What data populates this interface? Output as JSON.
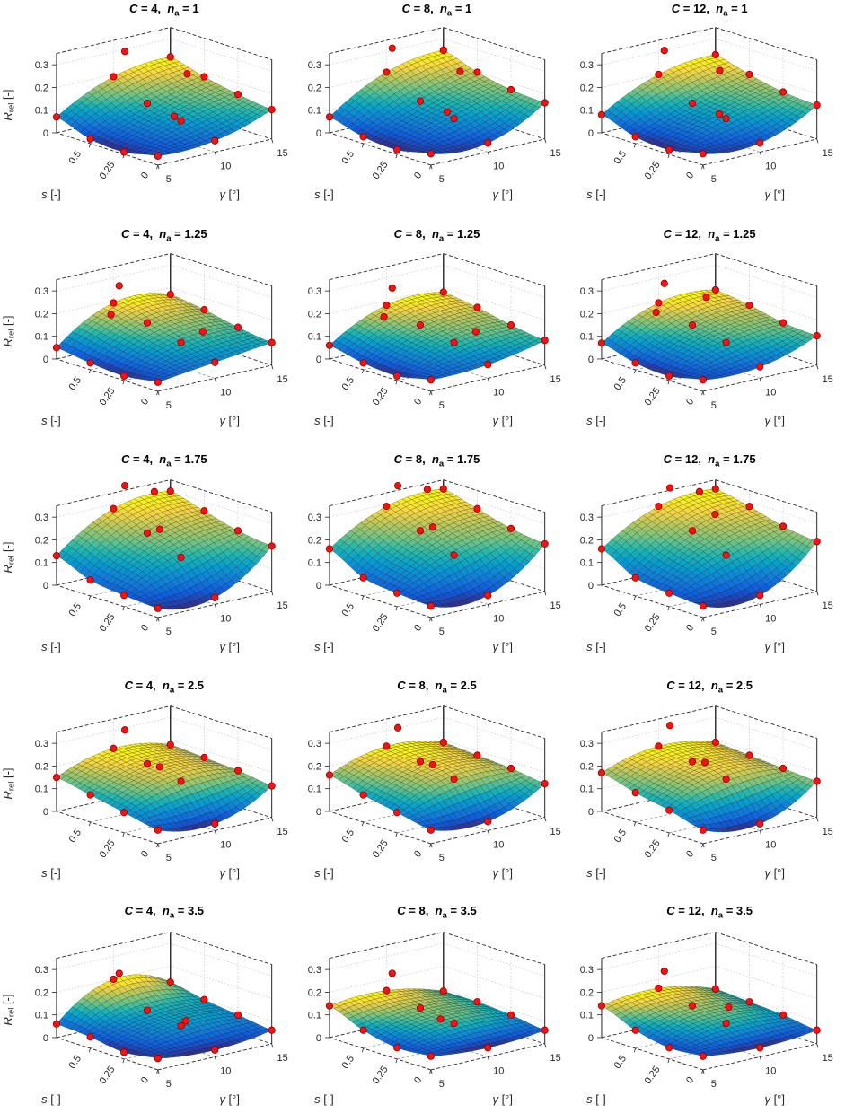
{
  "chart_data": {
    "type": "surface",
    "description": "5x3 grid of 3D surface plots of R_rel versus gamma and s for combinations of C and n_a, with red measured data points",
    "layout": {
      "rows": 5,
      "cols": 3,
      "grid_on": true,
      "colormap": "parula",
      "marker_color": "#f91111"
    },
    "labels": {
      "C": "C",
      "n": "n",
      "a": "a",
      "eq": " = ",
      "sep": ",  "
    },
    "axes": {
      "x": {
        "symbol": "γ",
        "unit": " [°]",
        "ticks": [
          "5",
          "10",
          "15"
        ],
        "tick_values": [
          5,
          10,
          15
        ],
        "range": [
          5,
          15
        ]
      },
      "y": {
        "symbol": "s",
        "unit": " [-]",
        "ticks": [
          "0",
          "0.25",
          "0.5"
        ],
        "tick_values": [
          0,
          0.25,
          0.5
        ],
        "range": [
          0,
          0.75
        ]
      },
      "z": {
        "symbol": "R",
        "subscript": "rel",
        "unit": " [-]",
        "ticks": [
          "0",
          "0.1",
          "0.2",
          "0.3"
        ],
        "tick_values": [
          0,
          0.1,
          0.2,
          0.3
        ],
        "range": [
          0,
          0.35
        ]
      }
    },
    "surface_grid": {
      "gamma": [
        5,
        10,
        15
      ],
      "s": [
        0,
        0.25,
        0.5,
        0.75
      ]
    },
    "plots": [
      {
        "title": "C = 4,  n_a = 1",
        "c": "4",
        "na": "1",
        "z_grid": [
          [
            0.04,
            0.05,
            0.13
          ],
          [
            0.01,
            0.09,
            0.15
          ],
          [
            0.02,
            0.12,
            0.18
          ],
          [
            0.07,
            0.19,
            0.22
          ]
        ],
        "extra_points": [
          [
            11,
            0.75,
            0.29
          ],
          [
            13.5,
            0.5,
            0.21
          ],
          [
            10,
            0.3,
            0.1
          ]
        ]
      },
      {
        "title": "C = 8,  n_a = 1",
        "c": "8",
        "na": "1",
        "z_grid": [
          [
            0.05,
            0.04,
            0.16
          ],
          [
            0.02,
            0.1,
            0.17
          ],
          [
            0.03,
            0.13,
            0.2
          ],
          [
            0.07,
            0.21,
            0.25
          ]
        ],
        "extra_points": [
          [
            10.5,
            0.75,
            0.31
          ],
          [
            13.5,
            0.5,
            0.22
          ],
          [
            10,
            0.3,
            0.12
          ]
        ]
      },
      {
        "title": "C = 12,  n_a = 1",
        "c": "12",
        "na": "1",
        "z_grid": [
          [
            0.05,
            0.04,
            0.15
          ],
          [
            0.02,
            0.1,
            0.16
          ],
          [
            0.03,
            0.12,
            0.19
          ],
          [
            0.08,
            0.2,
            0.23
          ]
        ],
        "extra_points": [
          [
            10.5,
            0.75,
            0.3
          ],
          [
            13,
            0.55,
            0.22
          ],
          [
            10,
            0.3,
            0.11
          ]
        ]
      },
      {
        "title": "C = 4,  n_a = 1.25",
        "c": "4",
        "na": "1.25",
        "z_grid": [
          [
            0.04,
            0.07,
            0.1
          ],
          [
            0.02,
            0.11,
            0.12
          ],
          [
            0.03,
            0.15,
            0.15
          ],
          [
            0.05,
            0.19,
            0.17
          ]
        ],
        "extra_points": [
          [
            10.5,
            0.75,
            0.26
          ],
          [
            8,
            0.6,
            0.19
          ],
          [
            12.5,
            0.3,
            0.12
          ]
        ]
      },
      {
        "title": "C = 8,  n_a = 1.25",
        "c": "8",
        "na": "1.25",
        "z_grid": [
          [
            0.05,
            0.06,
            0.11
          ],
          [
            0.02,
            0.11,
            0.13
          ],
          [
            0.03,
            0.14,
            0.16
          ],
          [
            0.06,
            0.18,
            0.18
          ]
        ],
        "extra_points": [
          [
            10.5,
            0.75,
            0.25
          ],
          [
            8,
            0.6,
            0.18
          ],
          [
            12.5,
            0.3,
            0.12
          ]
        ]
      },
      {
        "title": "C = 12,  n_a = 1.25",
        "c": "12",
        "na": "1.25",
        "z_grid": [
          [
            0.05,
            0.05,
            0.13
          ],
          [
            0.02,
            0.11,
            0.14
          ],
          [
            0.03,
            0.14,
            0.17
          ],
          [
            0.07,
            0.19,
            0.19
          ]
        ],
        "extra_points": [
          [
            10.5,
            0.75,
            0.27
          ],
          [
            8,
            0.6,
            0.2
          ],
          [
            13,
            0.65,
            0.2
          ]
        ]
      },
      {
        "title": "C = 4,  n_a = 1.75",
        "c": "4",
        "na": "1.75",
        "z_grid": [
          [
            0.04,
            0.03,
            0.2
          ],
          [
            0.05,
            0.16,
            0.22
          ],
          [
            0.07,
            0.22,
            0.26
          ],
          [
            0.13,
            0.28,
            0.3
          ]
        ],
        "extra_points": [
          [
            11,
            0.75,
            0.37
          ],
          [
            13,
            0.7,
            0.33
          ],
          [
            10.5,
            0.45,
            0.24
          ]
        ]
      },
      {
        "title": "C = 8,  n_a = 1.75",
        "c": "8",
        "na": "1.75",
        "z_grid": [
          [
            0.05,
            0.04,
            0.21
          ],
          [
            0.06,
            0.17,
            0.23
          ],
          [
            0.08,
            0.23,
            0.27
          ],
          [
            0.16,
            0.29,
            0.31
          ]
        ],
        "extra_points": [
          [
            11,
            0.75,
            0.37
          ],
          [
            13,
            0.7,
            0.34
          ],
          [
            10.5,
            0.45,
            0.25
          ]
        ]
      },
      {
        "title": "C = 12,  n_a = 1.75",
        "c": "12",
        "na": "1.75",
        "z_grid": [
          [
            0.05,
            0.04,
            0.22
          ],
          [
            0.06,
            0.17,
            0.24
          ],
          [
            0.08,
            0.23,
            0.28
          ],
          [
            0.16,
            0.29,
            0.31
          ]
        ],
        "extra_points": [
          [
            11,
            0.75,
            0.36
          ],
          [
            13,
            0.7,
            0.33
          ],
          [
            12,
            0.5,
            0.28
          ]
        ]
      },
      {
        "title": "C = 4,  n_a = 2.5",
        "c": "4",
        "na": "2.5",
        "z_grid": [
          [
            0.06,
            0.03,
            0.14
          ],
          [
            0.09,
            0.17,
            0.16
          ],
          [
            0.12,
            0.2,
            0.17
          ],
          [
            0.15,
            0.22,
            0.18
          ]
        ],
        "extra_points": [
          [
            11,
            0.75,
            0.29
          ],
          [
            10.5,
            0.45,
            0.19
          ]
        ]
      },
      {
        "title": "C = 8,  n_a = 2.5",
        "c": "8",
        "na": "2.5",
        "z_grid": [
          [
            0.06,
            0.04,
            0.15
          ],
          [
            0.09,
            0.18,
            0.17
          ],
          [
            0.12,
            0.21,
            0.18
          ],
          [
            0.16,
            0.23,
            0.19
          ]
        ],
        "extra_points": [
          [
            11,
            0.75,
            0.3
          ],
          [
            10.5,
            0.45,
            0.2
          ]
        ]
      },
      {
        "title": "C = 12,  n_a = 2.5",
        "c": "12",
        "na": "2.5",
        "z_grid": [
          [
            0.06,
            0.03,
            0.16
          ],
          [
            0.1,
            0.18,
            0.17
          ],
          [
            0.13,
            0.21,
            0.18
          ],
          [
            0.17,
            0.23,
            0.19
          ]
        ],
        "extra_points": [
          [
            11,
            0.75,
            0.31
          ],
          [
            10.5,
            0.45,
            0.21
          ]
        ]
      },
      {
        "title": "C = 4,  n_a = 3.5",
        "c": "4",
        "na": "3.5",
        "z_grid": [
          [
            0.05,
            0.03,
            0.06
          ],
          [
            0.03,
            0.09,
            0.08
          ],
          [
            0.05,
            0.11,
            0.1
          ],
          [
            0.06,
            0.2,
            0.13
          ]
        ],
        "extra_points": [
          [
            10.5,
            0.75,
            0.22
          ],
          [
            11,
            0.3,
            0.09
          ]
        ]
      },
      {
        "title": "C = 8,  n_a = 3.5",
        "c": "8",
        "na": "3.5",
        "z_grid": [
          [
            0.06,
            0.04,
            0.06
          ],
          [
            0.05,
            0.1,
            0.08
          ],
          [
            0.08,
            0.12,
            0.09
          ],
          [
            0.14,
            0.15,
            0.09
          ]
        ],
        "extra_points": [
          [
            10.5,
            0.75,
            0.22
          ],
          [
            10,
            0.35,
            0.1
          ]
        ]
      },
      {
        "title": "C = 12,  n_a = 3.5",
        "c": "12",
        "na": "3.5",
        "z_grid": [
          [
            0.06,
            0.04,
            0.06
          ],
          [
            0.05,
            0.1,
            0.08
          ],
          [
            0.08,
            0.13,
            0.09
          ],
          [
            0.14,
            0.16,
            0.1
          ]
        ],
        "extra_points": [
          [
            10.5,
            0.75,
            0.23
          ],
          [
            12,
            0.4,
            0.12
          ]
        ]
      }
    ]
  }
}
